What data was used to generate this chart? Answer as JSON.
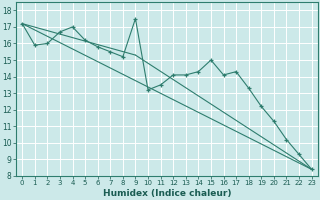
{
  "xlabel": "Humidex (Indice chaleur)",
  "background_color": "#cce9e9",
  "grid_color": "#ffffff",
  "line_color": "#2e7d6e",
  "xlim": [
    -0.5,
    23.5
  ],
  "ylim": [
    8,
    18.5
  ],
  "xticks": [
    0,
    1,
    2,
    3,
    4,
    5,
    6,
    7,
    8,
    9,
    10,
    11,
    12,
    13,
    14,
    15,
    16,
    17,
    18,
    19,
    20,
    21,
    22,
    23
  ],
  "yticks": [
    8,
    9,
    10,
    11,
    12,
    13,
    14,
    15,
    16,
    17,
    18
  ],
  "series": [
    [
      0,
      17.2
    ],
    [
      1,
      15.9
    ],
    [
      2,
      16.0
    ],
    [
      3,
      16.7
    ],
    [
      4,
      17.0
    ],
    [
      5,
      16.2
    ],
    [
      6,
      15.8
    ],
    [
      7,
      15.5
    ],
    [
      8,
      15.2
    ],
    [
      9,
      17.5
    ],
    [
      10,
      13.2
    ],
    [
      11,
      13.5
    ],
    [
      12,
      14.1
    ],
    [
      13,
      14.1
    ],
    [
      14,
      14.3
    ],
    [
      15,
      15.0
    ],
    [
      16,
      14.1
    ],
    [
      17,
      14.3
    ],
    [
      18,
      13.3
    ],
    [
      19,
      12.2
    ],
    [
      20,
      11.3
    ],
    [
      21,
      10.2
    ],
    [
      22,
      9.3
    ],
    [
      23,
      8.4
    ]
  ],
  "trend_lines": [
    {
      "x": [
        0,
        23
      ],
      "y": [
        17.2,
        8.4
      ]
    },
    {
      "x": [
        0,
        9
      ],
      "y": [
        17.2,
        15.3
      ]
    },
    {
      "x": [
        9,
        23
      ],
      "y": [
        15.3,
        8.4
      ]
    }
  ]
}
